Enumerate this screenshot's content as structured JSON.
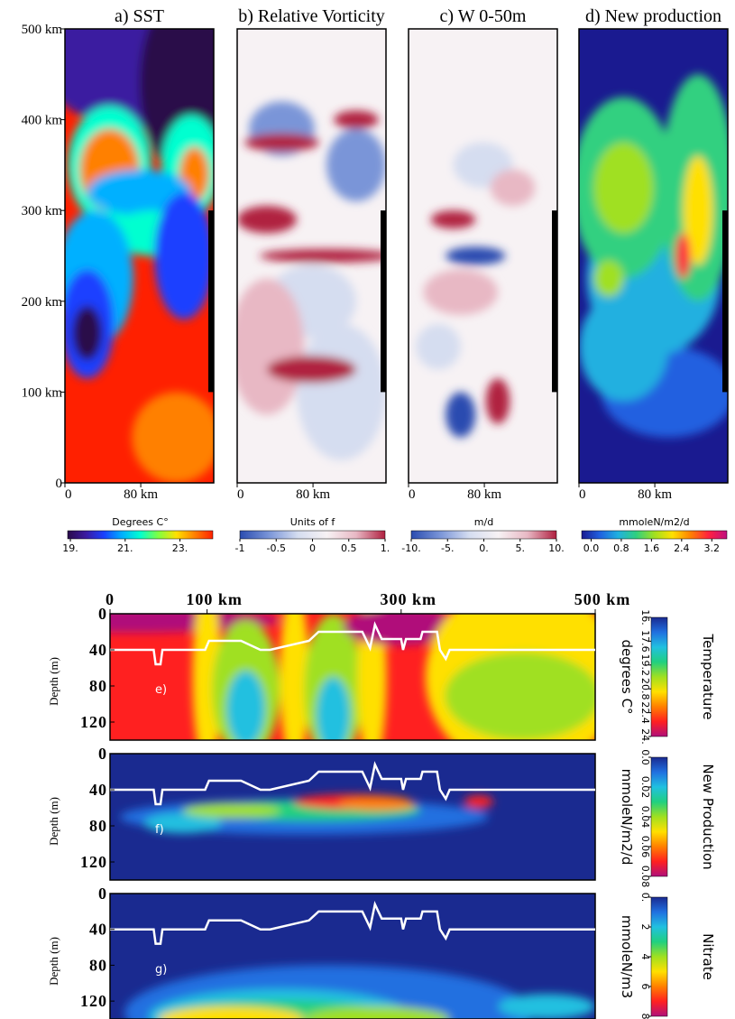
{
  "chart_data": [
    {
      "type": "contour",
      "title": "a) SST",
      "xlim": [
        0,
        157
      ],
      "xticks": [
        0,
        {
          "value": 80,
          "label": "80 km"
        }
      ],
      "ylim": [
        0,
        500
      ],
      "yticks": [
        0,
        {
          "value": 100,
          "label": "100 km"
        },
        {
          "value": 200,
          "label": "200 km"
        },
        {
          "value": 300,
          "label": "300 km"
        },
        {
          "value": 400,
          "label": "400 km"
        },
        {
          "value": 500,
          "label": "500 km"
        }
      ],
      "colorbar": {
        "label": "Degrees C°",
        "lim": [
          18.9,
          24.2
        ],
        "ticks": [
          {
            "value": 19,
            "label": "19."
          },
          {
            "value": 21,
            "label": "21."
          },
          {
            "value": 23,
            "label": "23."
          }
        ],
        "colors": [
          "#2a0a4a",
          "#3b1aa0",
          "#1a40ff",
          "#00b0ff",
          "#00ffd0",
          "#80ff40",
          "#ffe000",
          "#ff8000",
          "#ff2000"
        ]
      }
    },
    {
      "type": "contour",
      "title": "b) Relative Vorticity",
      "xlim": [
        0,
        157
      ],
      "xticks": [
        0,
        {
          "value": 80,
          "label": "80 km"
        }
      ],
      "ylim": [
        0,
        500
      ],
      "colorbar": {
        "label": "Units of f",
        "lim": [
          -1,
          1
        ],
        "ticks": [
          -1,
          -0.5,
          0,
          0.5,
          {
            "value": 1,
            "label": "1."
          }
        ],
        "colors": [
          "#2a4cb0",
          "#7a95d8",
          "#d5ddf0",
          "#f7f2f4",
          "#e8b8c4",
          "#b02040"
        ]
      }
    },
    {
      "type": "contour",
      "title": "c) W 0-50m",
      "xlim": [
        0,
        157
      ],
      "xticks": [
        0,
        {
          "value": 80,
          "label": "80 km"
        }
      ],
      "ylim": [
        0,
        500
      ],
      "colorbar": {
        "label": "m/d",
        "lim": [
          -10,
          10
        ],
        "ticks": [
          {
            "value": -10,
            "label": "-10."
          },
          {
            "value": -5,
            "label": "-5."
          },
          {
            "value": 0,
            "label": "0."
          },
          {
            "value": 5,
            "label": "5."
          },
          {
            "value": 10,
            "label": "10."
          }
        ],
        "colors": [
          "#2a4cb0",
          "#7a95d8",
          "#d5ddf0",
          "#f7f2f4",
          "#e8b8c4",
          "#b02040"
        ]
      }
    },
    {
      "type": "contour",
      "title": "d) New production",
      "xlim": [
        0,
        157
      ],
      "xticks": [
        0,
        {
          "value": 80,
          "label": "80 km"
        }
      ],
      "ylim": [
        0,
        500
      ],
      "colorbar": {
        "label": "mmoleN/m2/d",
        "lim": [
          -0.25,
          3.6
        ],
        "ticks": [
          {
            "value": 0,
            "label": "0.0"
          },
          0.8,
          1.6,
          2.4,
          3.2
        ],
        "colors": [
          "#1a1a90",
          "#2060e0",
          "#20b0e0",
          "#30d080",
          "#a0e020",
          "#ffe000",
          "#ff8000",
          "#ff2040",
          "#c01080"
        ]
      }
    },
    {
      "type": "section",
      "panel_label": "e)",
      "ylabel": "Depth (m)",
      "xlim": [
        0,
        500
      ],
      "xticks": [
        0,
        {
          "value": 100,
          "label": "100 km"
        },
        {
          "value": 300,
          "label": "300 km"
        },
        {
          "value": 500,
          "label": "500 km"
        }
      ],
      "ylim": [
        0,
        140
      ],
      "yticks": [
        0,
        40,
        80,
        120
      ],
      "series": [
        {
          "color": "#ffffff",
          "x": [
            0,
            45,
            47,
            52,
            54,
            98,
            102,
            135,
            155,
            165,
            205,
            215,
            260,
            268,
            273,
            280,
            300,
            302,
            305,
            320,
            322,
            337,
            340,
            346,
            350,
            500
          ],
          "values": [
            40,
            40,
            56,
            56,
            40,
            40,
            30,
            30,
            40,
            40,
            30,
            20,
            20,
            38,
            12,
            28,
            28,
            40,
            28,
            28,
            20,
            20,
            40,
            50,
            40,
            40
          ]
        }
      ],
      "colorbar": {
        "label": "degrees C°",
        "quantity": "Temperature",
        "lim": [
          16,
          24
        ],
        "ticks": [
          {
            "value": 16,
            "label": "16."
          },
          17.6,
          19.2,
          20.8,
          22.4,
          {
            "value": 24,
            "label": "24."
          }
        ],
        "colors": [
          "#1a2a90",
          "#2070e0",
          "#20c0e0",
          "#20d080",
          "#a0e020",
          "#ffe000",
          "#ff8000",
          "#ff2020",
          "#b0107a"
        ]
      }
    },
    {
      "type": "section",
      "panel_label": "f)",
      "ylabel": "Depth (m)",
      "xlim": [
        0,
        500
      ],
      "ylim": [
        0,
        140
      ],
      "yticks": [
        0,
        40,
        80,
        120
      ],
      "series": [
        {
          "color": "#ffffff",
          "x": [
            0,
            45,
            47,
            52,
            54,
            98,
            102,
            135,
            155,
            165,
            205,
            215,
            260,
            268,
            273,
            280,
            300,
            302,
            305,
            320,
            322,
            337,
            340,
            346,
            350,
            500
          ],
          "values": [
            40,
            40,
            56,
            56,
            40,
            40,
            30,
            30,
            40,
            40,
            30,
            20,
            20,
            38,
            12,
            28,
            28,
            40,
            28,
            28,
            20,
            20,
            40,
            50,
            40,
            40
          ]
        }
      ],
      "colorbar": {
        "label": "mmoleN/m2/d",
        "quantity": "New Production",
        "lim": [
          0,
          0.08
        ],
        "ticks": [
          {
            "value": 0,
            "label": "0.0"
          },
          0.02,
          0.04,
          0.06,
          0.08
        ],
        "colors": [
          "#1a2a90",
          "#2070e0",
          "#20c0e0",
          "#20d080",
          "#a0e020",
          "#ffe000",
          "#ff8000",
          "#ff2020",
          "#b0107a"
        ]
      }
    },
    {
      "type": "section",
      "panel_label": "g)",
      "ylabel": "Depth (m)",
      "xlim": [
        0,
        500
      ],
      "ylim": [
        0,
        140
      ],
      "yticks": [
        0,
        40,
        80,
        120
      ],
      "series": [
        {
          "color": "#ffffff",
          "x": [
            0,
            45,
            47,
            52,
            54,
            98,
            102,
            135,
            155,
            165,
            205,
            215,
            260,
            268,
            273,
            280,
            300,
            302,
            305,
            320,
            322,
            337,
            340,
            346,
            350,
            500
          ],
          "values": [
            40,
            40,
            56,
            56,
            40,
            40,
            30,
            30,
            40,
            40,
            30,
            20,
            20,
            38,
            12,
            28,
            28,
            40,
            28,
            28,
            20,
            20,
            40,
            50,
            40,
            40
          ]
        }
      ],
      "colorbar": {
        "label": "mmoleN/m3",
        "quantity": "Nitrate",
        "lim": [
          0,
          8
        ],
        "ticks": [
          {
            "value": 0,
            "label": "0."
          },
          2,
          4,
          6,
          8
        ],
        "colors": [
          "#1a2a90",
          "#2070e0",
          "#20c0e0",
          "#20d080",
          "#a0e020",
          "#ffe000",
          "#ff8000",
          "#ff2020",
          "#b0107a"
        ]
      }
    }
  ]
}
